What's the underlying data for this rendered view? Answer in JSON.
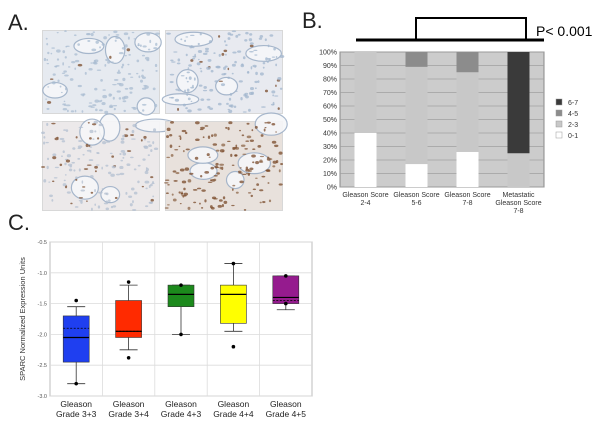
{
  "panels": {
    "a": "A.",
    "b": "B.",
    "c": "C."
  },
  "pvalue": "P< 0.001",
  "histology": [
    {
      "tone": "#e6eaf0",
      "stain": "#a9bcd2",
      "brown": 0.02
    },
    {
      "tone": "#e8eaf0",
      "stain": "#a2b6ce",
      "brown": 0.08
    },
    {
      "tone": "#ece9ea",
      "stain": "#b3bfd0",
      "brown": 0.2
    },
    {
      "tone": "#e8e1dc",
      "stain": "#8e6548",
      "brown": 0.75
    }
  ],
  "chart_data": [
    {
      "type": "bar",
      "stacked": true,
      "categories": [
        [
          "Gleason Score",
          "2-4"
        ],
        [
          "Gleason Score",
          "5-6"
        ],
        [
          "Gleason Score",
          "7-8"
        ],
        [
          "Metastatic",
          "Gleason Score",
          "7-8"
        ]
      ],
      "series": [
        {
          "name": "0-1",
          "color": "#ffffff",
          "values": [
            40,
            17,
            26,
            0
          ]
        },
        {
          "name": "2-3",
          "color": "#c8c8c8",
          "values": [
            60,
            72,
            59,
            25
          ]
        },
        {
          "name": "4-5",
          "color": "#8c8c8c",
          "values": [
            0,
            11,
            15,
            0
          ]
        },
        {
          "name": "6-7",
          "color": "#3a3a3a",
          "values": [
            0,
            0,
            0,
            75
          ]
        }
      ],
      "ylim": [
        0,
        100
      ],
      "yticks": [
        "0%",
        "10%",
        "20%",
        "30%",
        "40%",
        "50%",
        "60%",
        "70%",
        "80%",
        "90%",
        "100%"
      ],
      "plot_background": "#cccccc",
      "grid": true,
      "legend": "right"
    },
    {
      "type": "box",
      "ylabel": "SPARC Normalized Expression Units",
      "categories": [
        [
          "Gleason",
          "Grade 3+3"
        ],
        [
          "Gleason",
          "Grade 3+4"
        ],
        [
          "Gleason",
          "Grade 4+3"
        ],
        [
          "Gleason",
          "Grade 4+4"
        ],
        [
          "Gleason",
          "Grade 4+5"
        ]
      ],
      "ylim": [
        -3.0,
        -0.5
      ],
      "yticks": [
        "-0.5",
        "-1.0",
        "-1.5",
        "-2.0",
        "-2.5",
        "-3.0"
      ],
      "ytick_values": [
        -0.5,
        -1.0,
        -1.5,
        -2.0,
        -2.5,
        -3.0
      ],
      "boxes": [
        {
          "color": "#1f3ff0",
          "whisker_low": -2.8,
          "q1": -2.45,
          "median": -2.05,
          "q3": -1.7,
          "whisker_high": -1.55,
          "mean": -1.9,
          "outliers": [
            -1.45,
            -2.8
          ]
        },
        {
          "color": "#ff2a00",
          "whisker_low": -2.25,
          "q1": -2.05,
          "median": -1.95,
          "q3": -1.45,
          "whisker_high": -1.2,
          "mean": -1.95,
          "outliers": [
            -1.15,
            -2.38
          ]
        },
        {
          "color": "#1c8a1c",
          "whisker_low": -2.0,
          "q1": -1.55,
          "median": -1.35,
          "q3": -1.2,
          "whisker_high": -1.2,
          "mean": -1.35,
          "outliers": [
            -1.2,
            -2.0
          ]
        },
        {
          "color": "#ffff00",
          "whisker_low": -1.95,
          "q1": -1.82,
          "median": -1.35,
          "q3": -1.2,
          "whisker_high": -0.85,
          "mean": -1.35,
          "outliers": [
            -0.85,
            -2.2
          ]
        },
        {
          "color": "#951b8e",
          "whisker_low": -1.6,
          "q1": -1.5,
          "median": -1.4,
          "q3": -1.05,
          "whisker_high": -1.05,
          "mean": -1.45,
          "outliers": [
            -1.05,
            -1.5
          ]
        }
      ],
      "grid": true
    }
  ]
}
